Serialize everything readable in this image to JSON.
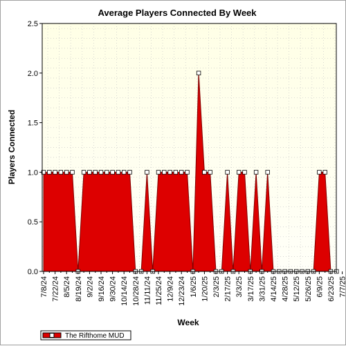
{
  "chart_data": {
    "type": "area",
    "title": "Average Players Connected By Week",
    "xlabel": "Week",
    "ylabel": "Players Connected",
    "ylim": [
      0,
      2.5
    ],
    "yticks": [
      "0.0",
      "0.5",
      "1.0",
      "1.5",
      "2.0",
      "2.5"
    ],
    "xtick_labels": [
      "7/8/24",
      "7/22/24",
      "8/5/24",
      "8/19/24",
      "9/2/24",
      "9/16/24",
      "9/30/24",
      "10/14/24",
      "10/28/24",
      "11/11/24",
      "11/25/24",
      "12/9/24",
      "12/23/24",
      "1/6/25",
      "1/20/25",
      "2/3/25",
      "2/17/25",
      "3/3/25",
      "3/17/25",
      "3/31/25",
      "4/14/25",
      "4/28/25",
      "5/12/25",
      "5/26/25",
      "6/9/25",
      "6/23/25",
      "7/7/25"
    ],
    "grid": true,
    "legend": "bottom-left",
    "series": [
      {
        "name": "The Rifthome MUD",
        "color": "#dd0000",
        "values": [
          1,
          1,
          1,
          1,
          1,
          1,
          0,
          1,
          1,
          1,
          1,
          1,
          1,
          1,
          1,
          1,
          0,
          0,
          1,
          0,
          1,
          1,
          1,
          1,
          1,
          1,
          0,
          2,
          1,
          1,
          0,
          0,
          1,
          0,
          1,
          1,
          0,
          1,
          0,
          1,
          0,
          0,
          0,
          0,
          0,
          0,
          0,
          0,
          1,
          1,
          0,
          0
        ]
      }
    ]
  }
}
